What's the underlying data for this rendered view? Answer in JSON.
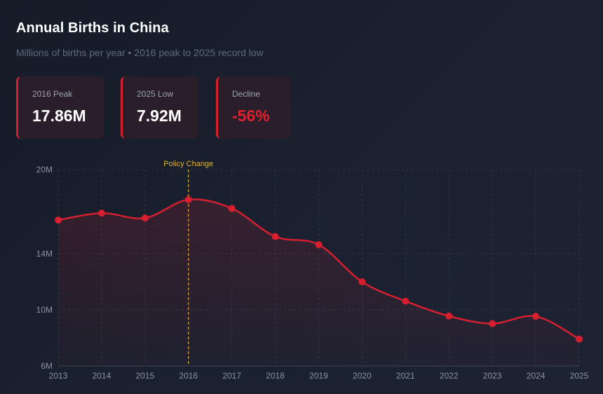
{
  "header": {
    "title": "Annual Births in China",
    "subtitle": "Millions of births per year • 2016 peak to 2025 record low"
  },
  "cards": [
    {
      "label": "2016 Peak",
      "value": "17.86M",
      "accent": false
    },
    {
      "label": "2025 Low",
      "value": "7.92M",
      "accent": false
    },
    {
      "label": "Decline",
      "value": "-56%",
      "accent": true
    }
  ],
  "colors": {
    "line": "#d61f2f",
    "annotation": "#e9b12f",
    "grid": "#2e3747"
  },
  "chart_data": {
    "type": "line",
    "x": [
      2013,
      2014,
      2015,
      2016,
      2017,
      2018,
      2019,
      2020,
      2021,
      2022,
      2023,
      2024,
      2025
    ],
    "series": [
      {
        "values": [
          16.4,
          16.9,
          16.55,
          17.86,
          17.23,
          15.23,
          14.65,
          12.0,
          10.62,
          9.56,
          9.02,
          9.54,
          7.92
        ]
      }
    ],
    "ylim": [
      6,
      20
    ],
    "yticks": [
      {
        "value": 6,
        "label": "6M"
      },
      {
        "value": 10,
        "label": "10M"
      },
      {
        "value": 14,
        "label": "14M"
      },
      {
        "value": 20,
        "label": "20M"
      }
    ],
    "xticks": [
      "2013",
      "2014",
      "2015",
      "2016",
      "2017",
      "2018",
      "2019",
      "2020",
      "2021",
      "2022",
      "2023",
      "2024",
      "2025"
    ],
    "annotation": {
      "x": 2016,
      "label": "Policy Change"
    },
    "grid": true,
    "area_fill": true
  }
}
